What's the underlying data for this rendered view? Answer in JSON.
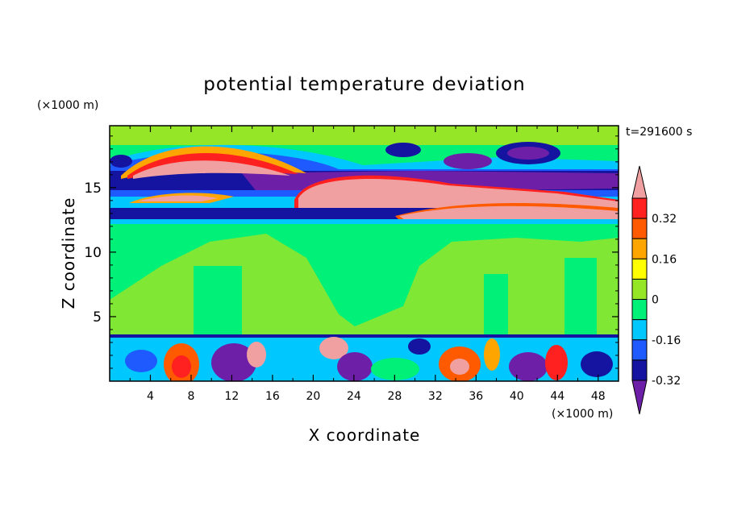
{
  "chart_data": {
    "type": "heatmap",
    "title": "potential temperature deviation",
    "xlabel": "X coordinate",
    "ylabel": "Z coordinate",
    "x_unit": "(×1000 m)",
    "y_unit": "(×1000 m)",
    "time_label": "t=291600 s",
    "xlim": [
      0,
      50
    ],
    "ylim": [
      0,
      19.8
    ],
    "x_ticks": [
      "4",
      "8",
      "12",
      "16",
      "20",
      "24",
      "28",
      "32",
      "36",
      "40",
      "44",
      "48"
    ],
    "y_ticks": [
      "5",
      "10",
      "15"
    ],
    "colorbar": {
      "levels": [
        "-0.4",
        "-0.32",
        "-0.24",
        "-0.16",
        "-0.08",
        "0",
        "0.08",
        "0.16",
        "0.24",
        "0.32",
        "0.4"
      ],
      "labels": [
        "0.32",
        "0.16",
        "0",
        "-0.16",
        "-0.32"
      ],
      "colors": [
        "#6e1fa8",
        "#1414a0",
        "#1e5aff",
        "#00c8ff",
        "#00f078",
        "#96e628",
        "#ffff00",
        "#ffa500",
        "#ff5a00",
        "#ff2020",
        "#f0a0a0"
      ]
    }
  }
}
